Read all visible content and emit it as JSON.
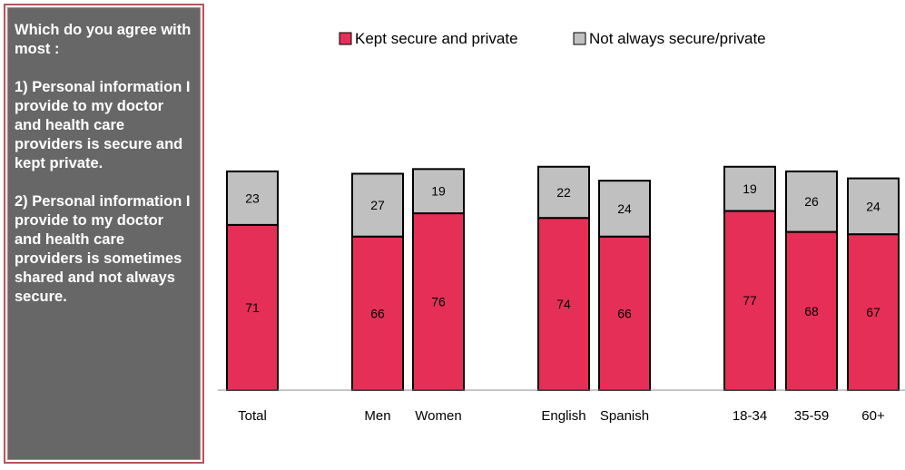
{
  "panel": {
    "question": "Which do you agree with most :",
    "option_1": "1) Personal information I provide to my doctor and health care providers is secure and kept private.",
    "option_2": "2) Personal information I provide to my doctor and health care providers is sometimes shared and not always secure."
  },
  "colors": {
    "kept": "#e62f56",
    "not_always": "#c0c0c0",
    "panel_bg": "#676767",
    "panel_border": "#b8545a"
  },
  "chart_data": {
    "type": "bar",
    "stacked": true,
    "categories": [
      "Total",
      "Men",
      "Women",
      "English",
      "Spanish",
      "18-34",
      "35-59",
      "60+"
    ],
    "groups": [
      [
        "Total"
      ],
      [
        "Men",
        "Women"
      ],
      [
        "English",
        "Spanish"
      ],
      [
        "18-34",
        "35-59",
        "60+"
      ]
    ],
    "series": [
      {
        "name": "Kept secure and private",
        "values": [
          71,
          66,
          76,
          74,
          66,
          77,
          68,
          67
        ]
      },
      {
        "name": "Not always secure/private",
        "values": [
          23,
          27,
          19,
          22,
          24,
          19,
          26,
          24
        ]
      }
    ],
    "legend_position": "top",
    "ylim": [
      0,
      100
    ],
    "grid": false,
    "xlabel": "",
    "ylabel": ""
  }
}
